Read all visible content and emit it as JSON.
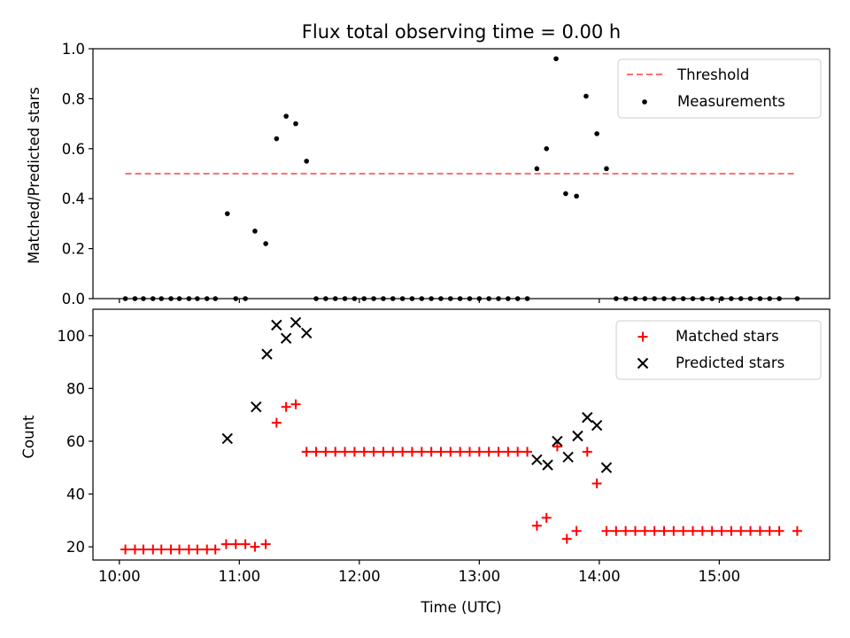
{
  "chart_data": [
    {
      "type": "scatter",
      "title": "Flux total observing time = 0.00 h",
      "ylabel": "Matched/Predicted stars",
      "xlabel": "",
      "xlim": [
        9.78,
        15.92
      ],
      "ylim": [
        0,
        1.0
      ],
      "xticks": [
        10,
        11,
        12,
        13,
        14,
        15
      ],
      "yticks": [
        0.0,
        0.2,
        0.4,
        0.6,
        0.8,
        1.0
      ],
      "ytick_labels": [
        "0.0",
        "0.2",
        "0.4",
        "0.6",
        "0.8",
        "1.0"
      ],
      "legend_position": "top-right",
      "threshold": {
        "name": "Threshold",
        "y": 0.5,
        "x_start": 10.05,
        "x_end": 15.65,
        "color": "#ff7070"
      },
      "series": [
        {
          "name": "Measurements",
          "color": "#000000",
          "x": [
            10.05,
            10.13,
            10.2,
            10.28,
            10.35,
            10.43,
            10.5,
            10.58,
            10.65,
            10.73,
            10.8,
            10.9,
            10.97,
            11.05,
            11.13,
            11.22,
            11.31,
            11.39,
            11.47,
            11.56,
            11.64,
            11.72,
            11.8,
            11.88,
            11.96,
            12.04,
            12.12,
            12.2,
            12.28,
            12.36,
            12.44,
            12.52,
            12.6,
            12.68,
            12.76,
            12.84,
            12.92,
            13.0,
            13.08,
            13.16,
            13.24,
            13.32,
            13.4,
            13.48,
            13.56,
            13.64,
            13.72,
            13.81,
            13.89,
            13.98,
            14.06,
            14.14,
            14.22,
            14.3,
            14.38,
            14.46,
            14.54,
            14.62,
            14.7,
            14.78,
            14.86,
            14.94,
            15.02,
            15.1,
            15.18,
            15.26,
            15.34,
            15.42,
            15.5,
            15.65
          ],
          "y": [
            0,
            0,
            0,
            0,
            0,
            0,
            0,
            0,
            0,
            0,
            0,
            0.34,
            0,
            0,
            0.27,
            0.22,
            0.64,
            0.73,
            0.7,
            0.55,
            0,
            0,
            0,
            0,
            0,
            0,
            0,
            0,
            0,
            0,
            0,
            0,
            0,
            0,
            0,
            0,
            0,
            0,
            0,
            0,
            0,
            0,
            0,
            0.52,
            0.6,
            0.96,
            0.42,
            0.41,
            0.81,
            0.66,
            0.52,
            0,
            0,
            0,
            0,
            0,
            0,
            0,
            0,
            0,
            0,
            0,
            0,
            0,
            0,
            0,
            0,
            0,
            0,
            0
          ]
        }
      ]
    },
    {
      "type": "scatter",
      "xlabel": "Time (UTC)",
      "ylabel": "Count",
      "xlim": [
        9.78,
        15.92
      ],
      "ylim": [
        15,
        110
      ],
      "xticks": [
        10,
        11,
        12,
        13,
        14,
        15
      ],
      "xtick_labels": [
        "10:00",
        "11:00",
        "12:00",
        "13:00",
        "14:00",
        "15:00"
      ],
      "yticks": [
        20,
        40,
        60,
        80,
        100
      ],
      "ytick_labels": [
        "20",
        "40",
        "60",
        "80",
        "100"
      ],
      "legend_position": "top-right",
      "series": [
        {
          "name": "Matched stars",
          "marker": "+",
          "color": "#ff0000",
          "x": [
            10.05,
            10.13,
            10.2,
            10.28,
            10.35,
            10.43,
            10.5,
            10.58,
            10.65,
            10.73,
            10.8,
            10.89,
            10.97,
            11.05,
            11.13,
            11.22,
            11.31,
            11.39,
            11.47,
            11.56,
            11.64,
            11.72,
            11.8,
            11.88,
            11.96,
            12.04,
            12.12,
            12.2,
            12.28,
            12.36,
            12.44,
            12.52,
            12.6,
            12.68,
            12.76,
            12.84,
            12.92,
            13.0,
            13.08,
            13.16,
            13.24,
            13.32,
            13.4,
            13.48,
            13.56,
            13.65,
            13.73,
            13.81,
            13.9,
            13.98,
            14.06,
            14.14,
            14.22,
            14.3,
            14.38,
            14.46,
            14.54,
            14.62,
            14.7,
            14.78,
            14.86,
            14.94,
            15.02,
            15.1,
            15.18,
            15.26,
            15.34,
            15.42,
            15.5,
            15.65
          ],
          "y": [
            19,
            19,
            19,
            19,
            19,
            19,
            19,
            19,
            19,
            19,
            19,
            21,
            21,
            21,
            20,
            21,
            67,
            73,
            74,
            56,
            56,
            56,
            56,
            56,
            56,
            56,
            56,
            56,
            56,
            56,
            56,
            56,
            56,
            56,
            56,
            56,
            56,
            56,
            56,
            56,
            56,
            56,
            56,
            28,
            31,
            58,
            23,
            26,
            56,
            44,
            26,
            26,
            26,
            26,
            26,
            26,
            26,
            26,
            26,
            26,
            26,
            26,
            26,
            26,
            26,
            26,
            26,
            26,
            26,
            26
          ]
        },
        {
          "name": "Predicted stars",
          "marker": "x",
          "color": "#000000",
          "x": [
            10.9,
            11.14,
            11.23,
            11.31,
            11.39,
            11.47,
            11.56,
            13.48,
            13.57,
            13.65,
            13.74,
            13.82,
            13.9,
            13.98,
            14.06
          ],
          "y": [
            61,
            73,
            93,
            104,
            99,
            105,
            101,
            53,
            51,
            60,
            54,
            62,
            69,
            66,
            50
          ]
        }
      ]
    }
  ]
}
